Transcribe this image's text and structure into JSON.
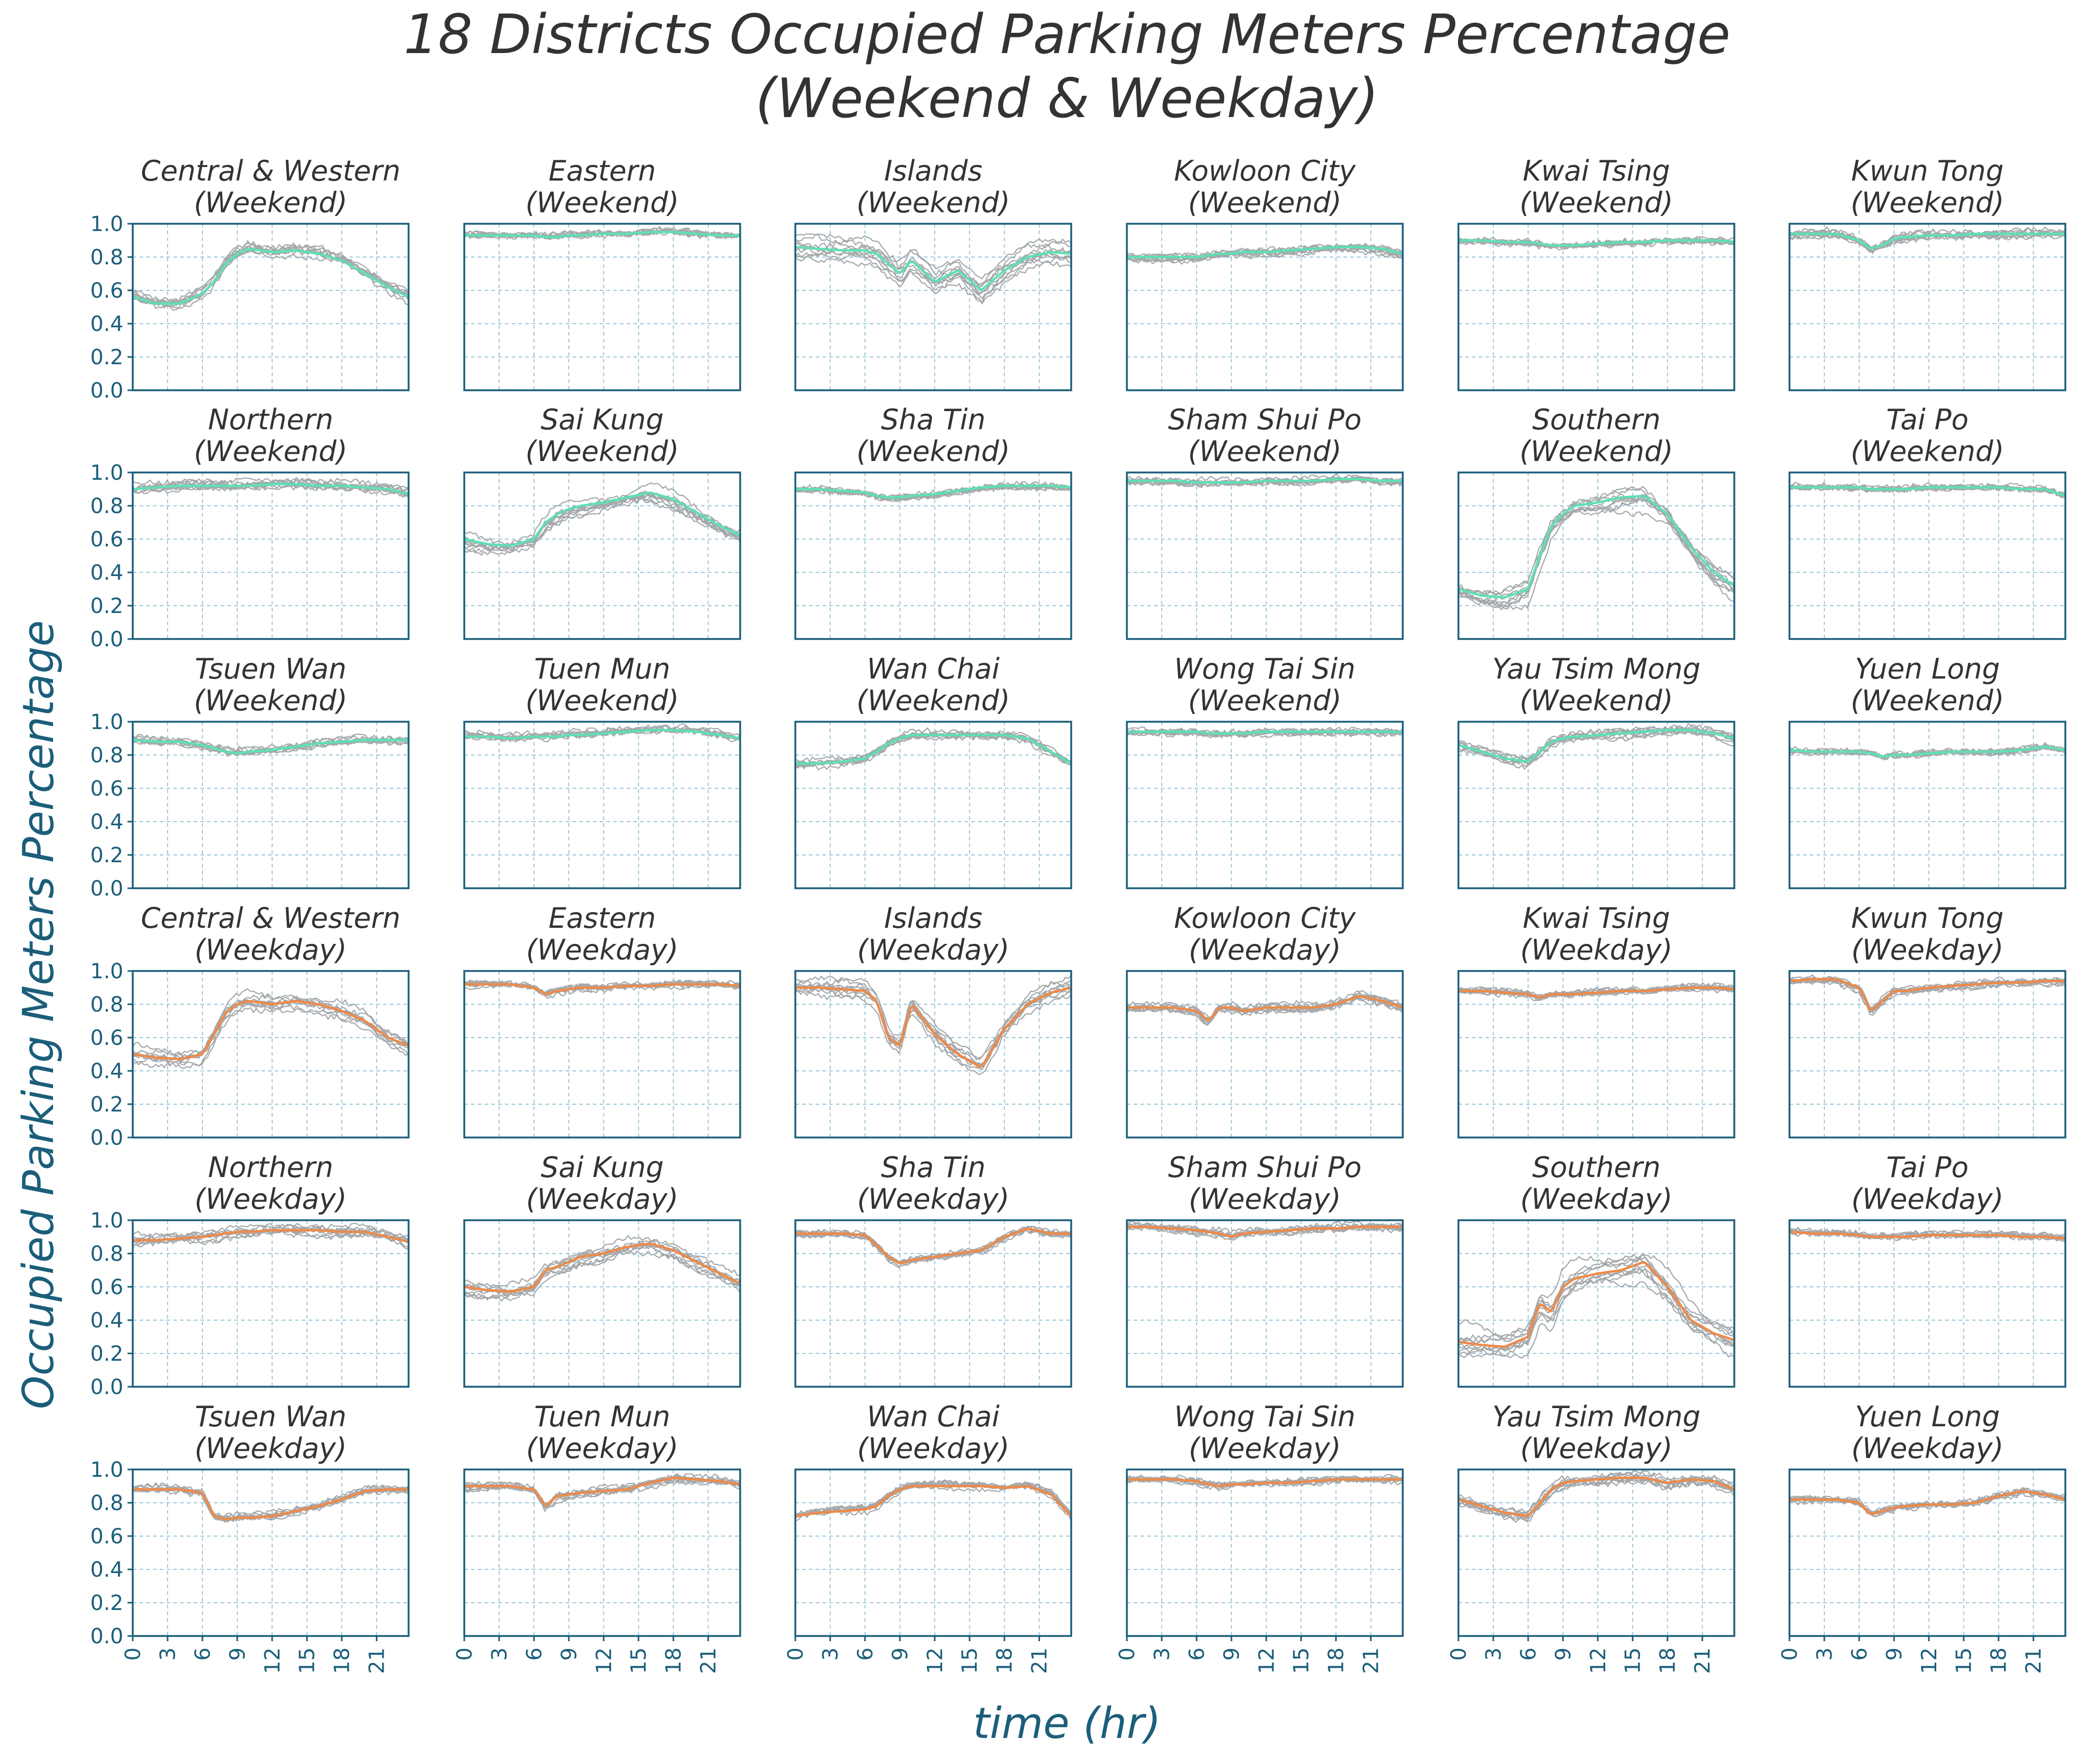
{
  "colors": {
    "axis": "#1b5e7a",
    "grid": "#9cc8d8",
    "traces": "#a4a8ab",
    "weekend_mean": "#5ee0b4",
    "weekday_mean": "#ee8a48",
    "text": "#333333"
  },
  "chart_data": {
    "type": "line",
    "title_line1": "18 Districts Occupied Parking Meters Percentage",
    "title_line2": "(Weekend & Weekday)",
    "xlabel": "time (hr)",
    "ylabel": "Occupied Parking Meters Percentage",
    "xlim": [
      0,
      23.75
    ],
    "ylim": [
      0,
      1.0
    ],
    "xticks": [
      "0",
      "3",
      "6",
      "9",
      "12",
      "15",
      "18",
      "21"
    ],
    "yticks": [
      "0.0",
      "0.2",
      "0.4",
      "0.6",
      "0.8",
      "1.0"
    ],
    "grid": true,
    "x_hours": [
      0,
      2,
      4,
      6,
      7,
      8,
      9,
      10,
      12,
      14,
      16,
      18,
      20,
      22,
      23.75
    ],
    "panels": [
      {
        "district": "Central & Western",
        "period": "(Weekend)",
        "mean": [
          0.56,
          0.52,
          0.52,
          0.58,
          0.65,
          0.76,
          0.82,
          0.85,
          0.83,
          0.84,
          0.82,
          0.78,
          0.7,
          0.62,
          0.56
        ],
        "spread": 0.06
      },
      {
        "district": "Eastern",
        "period": "(Weekend)",
        "mean": [
          0.93,
          0.93,
          0.93,
          0.93,
          0.92,
          0.92,
          0.93,
          0.93,
          0.94,
          0.94,
          0.95,
          0.95,
          0.94,
          0.93,
          0.93
        ],
        "spread": 0.02
      },
      {
        "district": "Islands",
        "period": "(Weekend)",
        "mean": [
          0.86,
          0.85,
          0.84,
          0.84,
          0.82,
          0.76,
          0.7,
          0.78,
          0.65,
          0.72,
          0.6,
          0.72,
          0.8,
          0.83,
          0.82
        ],
        "spread": 0.09
      },
      {
        "district": "Kowloon City",
        "period": "(Weekend)",
        "mean": [
          0.8,
          0.8,
          0.8,
          0.8,
          0.81,
          0.82,
          0.82,
          0.83,
          0.83,
          0.84,
          0.85,
          0.86,
          0.86,
          0.85,
          0.82
        ],
        "spread": 0.03
      },
      {
        "district": "Kwai Tsing",
        "period": "(Weekend)",
        "mean": [
          0.9,
          0.9,
          0.89,
          0.89,
          0.88,
          0.87,
          0.87,
          0.87,
          0.88,
          0.89,
          0.89,
          0.9,
          0.9,
          0.9,
          0.89
        ],
        "spread": 0.02
      },
      {
        "district": "Kwun Tong",
        "period": "(Weekend)",
        "mean": [
          0.94,
          0.94,
          0.94,
          0.9,
          0.85,
          0.87,
          0.91,
          0.92,
          0.93,
          0.93,
          0.94,
          0.94,
          0.94,
          0.94,
          0.94
        ],
        "spread": 0.03
      },
      {
        "district": "Northern",
        "period": "(Weekend)",
        "mean": [
          0.9,
          0.91,
          0.92,
          0.92,
          0.92,
          0.92,
          0.92,
          0.92,
          0.93,
          0.93,
          0.92,
          0.92,
          0.91,
          0.9,
          0.87
        ],
        "spread": 0.04
      },
      {
        "district": "Sai Kung",
        "period": "(Weekend)",
        "mean": [
          0.6,
          0.57,
          0.56,
          0.6,
          0.7,
          0.75,
          0.78,
          0.8,
          0.82,
          0.85,
          0.88,
          0.84,
          0.76,
          0.68,
          0.62
        ],
        "spread": 0.07
      },
      {
        "district": "Sha Tin",
        "period": "(Weekend)",
        "mean": [
          0.9,
          0.9,
          0.89,
          0.88,
          0.86,
          0.85,
          0.85,
          0.86,
          0.87,
          0.89,
          0.91,
          0.92,
          0.92,
          0.92,
          0.91
        ],
        "spread": 0.02
      },
      {
        "district": "Sham Shui Po",
        "period": "(Weekend)",
        "mean": [
          0.95,
          0.95,
          0.95,
          0.94,
          0.94,
          0.94,
          0.94,
          0.94,
          0.95,
          0.95,
          0.95,
          0.96,
          0.96,
          0.95,
          0.95
        ],
        "spread": 0.03
      },
      {
        "district": "Southern",
        "period": "(Weekend)",
        "mean": [
          0.3,
          0.26,
          0.25,
          0.3,
          0.5,
          0.68,
          0.75,
          0.8,
          0.82,
          0.85,
          0.86,
          0.75,
          0.55,
          0.4,
          0.32
        ],
        "spread": 0.12
      },
      {
        "district": "Tai Po",
        "period": "(Weekend)",
        "mean": [
          0.91,
          0.91,
          0.91,
          0.91,
          0.9,
          0.9,
          0.9,
          0.9,
          0.91,
          0.91,
          0.91,
          0.91,
          0.9,
          0.9,
          0.86
        ],
        "spread": 0.02
      },
      {
        "district": "Tsuen Wan",
        "period": "(Weekend)",
        "mean": [
          0.89,
          0.88,
          0.88,
          0.86,
          0.84,
          0.82,
          0.81,
          0.82,
          0.83,
          0.85,
          0.87,
          0.88,
          0.89,
          0.89,
          0.89
        ],
        "spread": 0.03
      },
      {
        "district": "Tuen Mun",
        "period": "(Weekend)",
        "mean": [
          0.91,
          0.91,
          0.9,
          0.91,
          0.91,
          0.91,
          0.92,
          0.92,
          0.93,
          0.94,
          0.95,
          0.95,
          0.94,
          0.92,
          0.9
        ],
        "spread": 0.03
      },
      {
        "district": "Wan Chai",
        "period": "(Weekend)",
        "mean": [
          0.75,
          0.75,
          0.76,
          0.78,
          0.82,
          0.87,
          0.9,
          0.92,
          0.92,
          0.92,
          0.92,
          0.92,
          0.9,
          0.82,
          0.75
        ],
        "spread": 0.03
      },
      {
        "district": "Wong Tai Sin",
        "period": "(Weekend)",
        "mean": [
          0.94,
          0.94,
          0.94,
          0.94,
          0.93,
          0.93,
          0.93,
          0.93,
          0.94,
          0.94,
          0.94,
          0.94,
          0.94,
          0.94,
          0.94
        ],
        "spread": 0.02
      },
      {
        "district": "Yau Tsim Mong",
        "period": "(Weekend)",
        "mean": [
          0.86,
          0.82,
          0.78,
          0.76,
          0.82,
          0.88,
          0.9,
          0.91,
          0.92,
          0.93,
          0.94,
          0.95,
          0.95,
          0.93,
          0.9
        ],
        "spread": 0.04
      },
      {
        "district": "Yuen Long",
        "period": "(Weekend)",
        "mean": [
          0.83,
          0.82,
          0.82,
          0.82,
          0.81,
          0.79,
          0.8,
          0.8,
          0.81,
          0.82,
          0.82,
          0.82,
          0.83,
          0.85,
          0.83
        ],
        "spread": 0.02
      },
      {
        "district": "Central & Western",
        "period": "(Weekday)",
        "mean": [
          0.5,
          0.48,
          0.47,
          0.5,
          0.62,
          0.75,
          0.8,
          0.82,
          0.8,
          0.82,
          0.8,
          0.76,
          0.7,
          0.6,
          0.55
        ],
        "spread": 0.07
      },
      {
        "district": "Eastern",
        "period": "(Weekday)",
        "mean": [
          0.92,
          0.92,
          0.92,
          0.9,
          0.86,
          0.88,
          0.89,
          0.9,
          0.9,
          0.91,
          0.91,
          0.92,
          0.92,
          0.92,
          0.91
        ],
        "spread": 0.02
      },
      {
        "district": "Islands",
        "period": "(Weekday)",
        "mean": [
          0.9,
          0.9,
          0.89,
          0.88,
          0.82,
          0.6,
          0.55,
          0.8,
          0.62,
          0.5,
          0.42,
          0.65,
          0.8,
          0.87,
          0.9
        ],
        "spread": 0.07
      },
      {
        "district": "Kowloon City",
        "period": "(Weekday)",
        "mean": [
          0.78,
          0.78,
          0.78,
          0.76,
          0.7,
          0.78,
          0.78,
          0.76,
          0.78,
          0.78,
          0.78,
          0.8,
          0.85,
          0.82,
          0.78
        ],
        "spread": 0.03
      },
      {
        "district": "Kwai Tsing",
        "period": "(Weekday)",
        "mean": [
          0.88,
          0.88,
          0.87,
          0.86,
          0.84,
          0.86,
          0.86,
          0.86,
          0.87,
          0.88,
          0.88,
          0.89,
          0.9,
          0.9,
          0.89
        ],
        "spread": 0.02
      },
      {
        "district": "Kwun Tong",
        "period": "(Weekday)",
        "mean": [
          0.94,
          0.95,
          0.95,
          0.9,
          0.76,
          0.82,
          0.88,
          0.88,
          0.9,
          0.91,
          0.92,
          0.93,
          0.93,
          0.94,
          0.94
        ],
        "spread": 0.03
      },
      {
        "district": "Northern",
        "period": "(Weekday)",
        "mean": [
          0.88,
          0.88,
          0.89,
          0.9,
          0.91,
          0.92,
          0.93,
          0.93,
          0.94,
          0.94,
          0.94,
          0.93,
          0.93,
          0.9,
          0.87
        ],
        "spread": 0.04
      },
      {
        "district": "Sai Kung",
        "period": "(Weekday)",
        "mean": [
          0.6,
          0.58,
          0.57,
          0.6,
          0.7,
          0.72,
          0.75,
          0.78,
          0.8,
          0.84,
          0.86,
          0.82,
          0.75,
          0.68,
          0.62
        ],
        "spread": 0.06
      },
      {
        "district": "Sha Tin",
        "period": "(Weekday)",
        "mean": [
          0.92,
          0.92,
          0.92,
          0.91,
          0.85,
          0.78,
          0.74,
          0.76,
          0.78,
          0.8,
          0.82,
          0.9,
          0.95,
          0.92,
          0.92
        ],
        "spread": 0.02
      },
      {
        "district": "Sham Shui Po",
        "period": "(Weekday)",
        "mean": [
          0.96,
          0.96,
          0.95,
          0.94,
          0.93,
          0.92,
          0.9,
          0.92,
          0.93,
          0.94,
          0.95,
          0.95,
          0.96,
          0.96,
          0.96
        ],
        "spread": 0.03
      },
      {
        "district": "Southern",
        "period": "(Weekday)",
        "mean": [
          0.27,
          0.25,
          0.24,
          0.3,
          0.5,
          0.45,
          0.6,
          0.65,
          0.68,
          0.7,
          0.75,
          0.6,
          0.4,
          0.32,
          0.28
        ],
        "spread": 0.13
      },
      {
        "district": "Tai Po",
        "period": "(Weekday)",
        "mean": [
          0.93,
          0.92,
          0.92,
          0.91,
          0.9,
          0.9,
          0.9,
          0.9,
          0.91,
          0.91,
          0.91,
          0.91,
          0.9,
          0.9,
          0.89
        ],
        "spread": 0.02
      },
      {
        "district": "Tsuen Wan",
        "period": "(Weekday)",
        "mean": [
          0.88,
          0.88,
          0.88,
          0.86,
          0.72,
          0.7,
          0.71,
          0.71,
          0.72,
          0.75,
          0.78,
          0.82,
          0.87,
          0.88,
          0.88
        ],
        "spread": 0.03
      },
      {
        "district": "Tuen Mun",
        "period": "(Weekday)",
        "mean": [
          0.9,
          0.9,
          0.9,
          0.88,
          0.78,
          0.84,
          0.85,
          0.86,
          0.87,
          0.88,
          0.92,
          0.95,
          0.94,
          0.93,
          0.91
        ],
        "spread": 0.03
      },
      {
        "district": "Wan Chai",
        "period": "(Weekday)",
        "mean": [
          0.72,
          0.74,
          0.75,
          0.76,
          0.78,
          0.84,
          0.88,
          0.9,
          0.9,
          0.9,
          0.9,
          0.89,
          0.9,
          0.85,
          0.72
        ],
        "spread": 0.03
      },
      {
        "district": "Wong Tai Sin",
        "period": "(Weekday)",
        "mean": [
          0.94,
          0.94,
          0.94,
          0.93,
          0.91,
          0.9,
          0.91,
          0.91,
          0.92,
          0.92,
          0.93,
          0.94,
          0.94,
          0.94,
          0.94
        ],
        "spread": 0.02
      },
      {
        "district": "Yau Tsim Mong",
        "period": "(Weekday)",
        "mean": [
          0.82,
          0.78,
          0.74,
          0.72,
          0.8,
          0.88,
          0.92,
          0.93,
          0.94,
          0.95,
          0.95,
          0.92,
          0.94,
          0.93,
          0.88
        ],
        "spread": 0.04
      },
      {
        "district": "Yuen Long",
        "period": "(Weekday)",
        "mean": [
          0.82,
          0.82,
          0.82,
          0.8,
          0.73,
          0.75,
          0.77,
          0.78,
          0.79,
          0.79,
          0.8,
          0.84,
          0.87,
          0.85,
          0.82
        ],
        "spread": 0.02
      }
    ]
  }
}
